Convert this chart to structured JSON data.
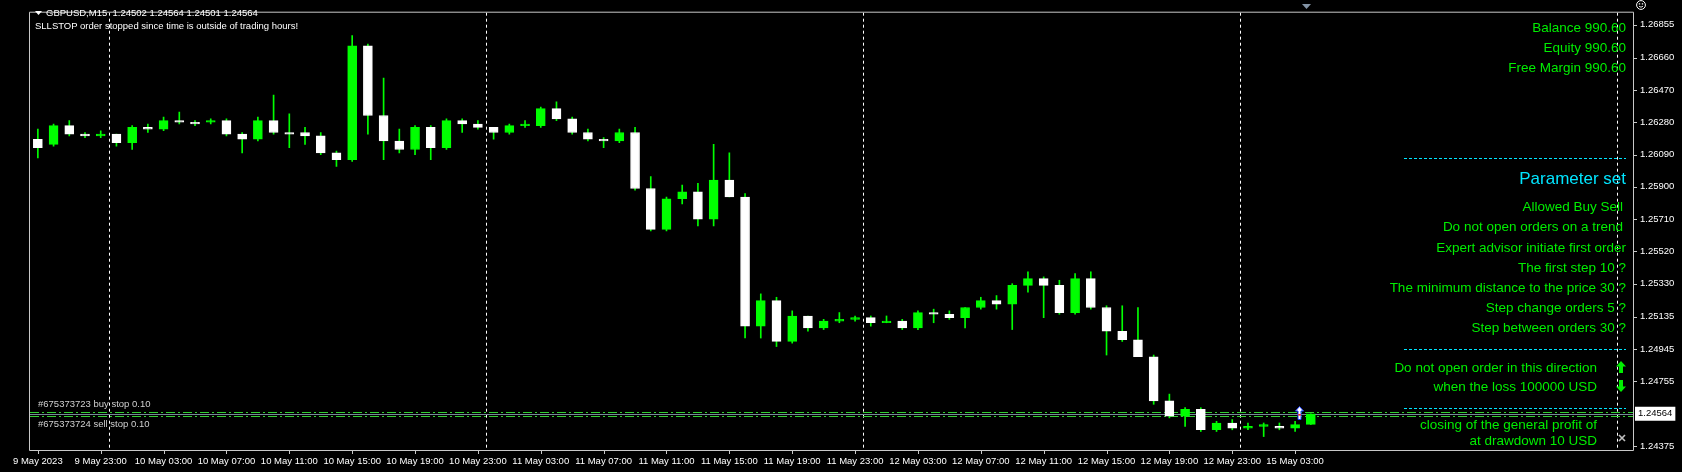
{
  "chart_data": {
    "type": "candlestick",
    "title": "GBPUSD,M15  1.24502 1.24564 1.24501 1.24564",
    "subtitle": "SLLSTOP order stopped since time is outside of trading hours!",
    "categories": [
      "9 May 2023",
      null,
      null,
      null,
      "9 May 23:00",
      null,
      null,
      null,
      "10 May 03:00",
      null,
      null,
      null,
      "10 May 07:00",
      null,
      null,
      null,
      "10 May 11:00",
      null,
      null,
      null,
      "10 May 15:00",
      null,
      null,
      null,
      "10 May 19:00",
      null,
      null,
      null,
      "10 May 23:00",
      null,
      null,
      null,
      "11 May 03:00",
      null,
      null,
      null,
      "11 May 07:00",
      null,
      null,
      null,
      "11 May 11:00",
      null,
      null,
      null,
      "11 May 15:00",
      null,
      null,
      null,
      "11 May 19:00",
      null,
      null,
      null,
      "11 May 23:00",
      null,
      null,
      null,
      "12 May 03:00",
      null,
      null,
      null,
      "12 May 07:00",
      null,
      null,
      null,
      "12 May 11:00",
      null,
      null,
      null,
      "12 May 15:00",
      null,
      null,
      null,
      "12 May 19:00",
      null,
      null,
      null,
      "12 May 23:00",
      null,
      null,
      null,
      "15 May 03:00",
      null,
      null,
      null,
      null,
      null,
      null,
      null,
      null,
      null,
      null,
      null,
      null,
      null,
      null,
      null,
      null,
      null,
      null,
      null,
      null,
      null
    ],
    "ohlc": [
      [
        1.2618,
        1.2624,
        1.2607,
        1.2613
      ],
      [
        1.2615,
        1.2627,
        1.2614,
        1.2626
      ],
      [
        1.2626,
        1.2629,
        1.262,
        1.2621
      ],
      [
        1.2621,
        1.2622,
        1.2619,
        1.262
      ],
      [
        1.262,
        1.2623,
        1.2619,
        1.2621
      ],
      [
        1.2621,
        1.2621,
        1.2614,
        1.2616
      ],
      [
        1.2616,
        1.2626,
        1.2612,
        1.2625
      ],
      [
        1.2625,
        1.2627,
        1.2622,
        1.2624
      ],
      [
        1.2624,
        1.2631,
        1.2623,
        1.2629
      ],
      [
        1.2629,
        1.2634,
        1.2627,
        1.2628
      ],
      [
        1.2628,
        1.2629,
        1.2626,
        1.2627
      ],
      [
        1.2628,
        1.263,
        1.2627,
        1.2629
      ],
      [
        1.2629,
        1.263,
        1.262,
        1.2621
      ],
      [
        1.2621,
        1.2622,
        1.261,
        1.2618
      ],
      [
        1.2618,
        1.2631,
        1.2617,
        1.2629
      ],
      [
        1.2629,
        1.2644,
        1.2621,
        1.2622
      ],
      [
        1.2622,
        1.2633,
        1.2613,
        1.2621
      ],
      [
        1.2622,
        1.2625,
        1.2615,
        1.262
      ],
      [
        1.262,
        1.2622,
        1.2609,
        1.261
      ],
      [
        1.261,
        1.2611,
        1.2602,
        1.2606
      ],
      [
        1.2606,
        1.2679,
        1.2605,
        1.2673
      ],
      [
        1.2673,
        1.2674,
        1.2621,
        1.2632
      ],
      [
        1.2632,
        1.2654,
        1.2606,
        1.2617
      ],
      [
        1.2617,
        1.2624,
        1.261,
        1.2612
      ],
      [
        1.2612,
        1.2626,
        1.2609,
        1.2625
      ],
      [
        1.2625,
        1.2626,
        1.2606,
        1.2613
      ],
      [
        1.2613,
        1.263,
        1.2612,
        1.2629
      ],
      [
        1.2629,
        1.263,
        1.2622,
        1.2627
      ],
      [
        1.2627,
        1.2629,
        1.2624,
        1.2625
      ],
      [
        1.2625,
        1.2625,
        1.2618,
        1.2622
      ],
      [
        1.2622,
        1.2627,
        1.2621,
        1.2626
      ],
      [
        1.2626,
        1.2629,
        1.2625,
        1.2627
      ],
      [
        1.2626,
        1.2637,
        1.2625,
        1.2636
      ],
      [
        1.2636,
        1.264,
        1.2629,
        1.263
      ],
      [
        1.263,
        1.2631,
        1.2621,
        1.2622
      ],
      [
        1.2622,
        1.2624,
        1.2617,
        1.2618
      ],
      [
        1.2618,
        1.2619,
        1.2613,
        1.2617
      ],
      [
        1.2617,
        1.2624,
        1.2616,
        1.2622
      ],
      [
        1.2622,
        1.2625,
        1.2588,
        1.2589
      ],
      [
        1.2589,
        1.2596,
        1.2564,
        1.2565
      ],
      [
        1.2565,
        1.2584,
        1.2564,
        1.2583
      ],
      [
        1.2583,
        1.2591,
        1.258,
        1.2587
      ],
      [
        1.2587,
        1.2592,
        1.2567,
        1.2571
      ],
      [
        1.2571,
        1.2615,
        1.2567,
        1.2594
      ],
      [
        1.2594,
        1.261,
        1.2584,
        1.2584
      ],
      [
        1.2584,
        1.2586,
        1.2501,
        1.2508
      ],
      [
        1.2508,
        1.2527,
        1.2501,
        1.2523
      ],
      [
        1.2523,
        1.2525,
        1.2496,
        1.2499
      ],
      [
        1.2499,
        1.2517,
        1.2498,
        1.2514
      ],
      [
        1.2514,
        1.2514,
        1.2505,
        1.2507
      ],
      [
        1.2507,
        1.2512,
        1.2506,
        1.2511
      ],
      [
        1.2511,
        1.2516,
        1.251,
        1.2512
      ],
      [
        1.2512,
        1.2514,
        1.2511,
        1.2513
      ],
      [
        1.2513,
        1.2514,
        1.2508,
        1.251
      ],
      [
        1.251,
        1.2514,
        1.251,
        1.2511
      ],
      [
        1.2511,
        1.2512,
        1.2506,
        1.2507
      ],
      [
        1.2507,
        1.2517,
        1.2506,
        1.2516
      ],
      [
        1.2516,
        1.2518,
        1.251,
        1.2515
      ],
      [
        1.2515,
        1.2517,
        1.2512,
        1.2513
      ],
      [
        1.2513,
        1.2519,
        1.2507,
        1.2519
      ],
      [
        1.2519,
        1.2525,
        1.2518,
        1.2523
      ],
      [
        1.2523,
        1.2526,
        1.2518,
        1.2521
      ],
      [
        1.2521,
        1.2533,
        1.2506,
        1.2532
      ],
      [
        1.2532,
        1.254,
        1.2528,
        1.2536
      ],
      [
        1.2536,
        1.2537,
        1.2513,
        1.2532
      ],
      [
        1.2532,
        1.2535,
        1.2515,
        1.2516
      ],
      [
        1.2516,
        1.2539,
        1.2515,
        1.2536
      ],
      [
        1.2536,
        1.254,
        1.2518,
        1.2519
      ],
      [
        1.2519,
        1.252,
        1.2491,
        1.2505
      ],
      [
        1.2505,
        1.252,
        1.2499,
        1.25
      ],
      [
        1.25,
        1.2519,
        1.249,
        1.249
      ],
      [
        1.249,
        1.2491,
        1.2462,
        1.2464
      ],
      [
        1.2464,
        1.2468,
        1.2454,
        1.2455
      ],
      [
        1.2455,
        1.246,
        1.2449,
        1.2459
      ],
      [
        1.2459,
        1.246,
        1.2446,
        1.2447
      ],
      [
        1.2447,
        1.2452,
        1.2446,
        1.2451
      ],
      [
        1.2451,
        1.2453,
        1.2447,
        1.2448
      ],
      [
        1.2448,
        1.2451,
        1.2447,
        1.2449
      ],
      [
        1.2449,
        1.2451,
        1.2443,
        1.245
      ],
      [
        1.2449,
        1.2451,
        1.2447,
        1.2448
      ],
      [
        1.2448,
        1.2452,
        1.2446,
        1.245
      ],
      [
        1.24502,
        1.24564,
        1.24501,
        1.24564
      ],
      null,
      null,
      null,
      null,
      null,
      null,
      null,
      null,
      null,
      null,
      null,
      null,
      null,
      null,
      null,
      null,
      null,
      null,
      null,
      null
    ],
    "color": "#00ff00",
    "colors": [
      "#ffffff",
      "#00ff00",
      "#ffffff",
      "#ffffff",
      "#00ff00",
      "#ffffff",
      "#00ff00",
      "#ffffff",
      "#00ff00",
      "#ffffff",
      "#ffffff",
      "#00ff00",
      "#ffffff",
      "#ffffff",
      "#00ff00",
      "#ffffff",
      "#ffffff",
      "#ffffff",
      "#ffffff",
      "#ffffff",
      "#00ff00",
      "#ffffff",
      "#ffffff",
      "#ffffff",
      "#00ff00",
      "#ffffff",
      "#00ff00",
      "#ffffff",
      "#ffffff",
      "#ffffff",
      "#00ff00",
      "#00ff00",
      "#00ff00",
      "#ffffff",
      "#ffffff",
      "#ffffff",
      "#ffffff",
      "#00ff00",
      "#ffffff",
      "#ffffff",
      "#00ff00",
      "#00ff00",
      "#ffffff",
      "#00ff00",
      "#ffffff",
      "#ffffff",
      "#00ff00",
      "#ffffff",
      "#00ff00",
      "#ffffff",
      "#00ff00",
      "#00ff00",
      "#00ff00",
      "#ffffff",
      "#00ff00",
      "#ffffff",
      "#00ff00",
      "#ffffff",
      "#ffffff",
      "#00ff00",
      "#00ff00",
      "#ffffff",
      "#00ff00",
      "#00ff00",
      "#ffffff",
      "#ffffff",
      "#00ff00",
      "#ffffff",
      "#ffffff",
      "#ffffff",
      "#ffffff",
      "#ffffff",
      "#ffffff",
      "#00ff00",
      "#ffffff",
      "#00ff00",
      "#ffffff",
      "#00ff00",
      "#00ff00",
      "#ffffff",
      "#00ff00",
      "#00ff00",
      null,
      null,
      null,
      null,
      null,
      null,
      null,
      null,
      null,
      null,
      null,
      null,
      null,
      null,
      null,
      null,
      null,
      null,
      null,
      null
    ],
    "ylim": [
      1.24351,
      1.26925
    ],
    "yticks": [
      1.26855,
      {
        "value": 1.2666,
        "label": "1.26660"
      },
      {
        "value": 1.2647,
        "label": "1.26470"
      },
      {
        "value": 1.2628,
        "label": "1.26280"
      },
      {
        "value": 1.2609,
        "label": "1.26090"
      },
      {
        "value": 1.259,
        "label": "1.25900"
      },
      {
        "value": 1.2571,
        "label": "1.25710"
      },
      {
        "value": 1.2552,
        "label": "1.25520"
      },
      {
        "value": 1.2533,
        "label": "1.25330"
      },
      1.25135,
      1.24945,
      1.24755,
      1.24375
    ],
    "grid": false,
    "ref_lines": [
      {
        "axis": "y",
        "value": 1.24564,
        "label": "1.24564",
        "color": "#778899",
        "line_style": "solid"
      },
      {
        "axis": "y",
        "value": 1.24575,
        "label": "#675373723 buy stop 0.10",
        "color": "#32cd32",
        "line_style": "dashed"
      },
      {
        "axis": "y",
        "value": 1.2455,
        "label": "#675373724 sell stop 0.10",
        "color": "#32cd32",
        "line_style": "dashed"
      }
    ],
    "annotations": [
      "Balance 990.60",
      "Equity 990.60",
      "Free Margin 990.60",
      "Parameter set",
      "Allowed Buy Sell",
      "Do not open orders on a trend",
      "Expert advisor initiate first order",
      "The first step 10 ?",
      "The minimum distance to the price 30 ?",
      "Step change orders 5 ?",
      "Step between orders 30 ?",
      "Do not open order in this direction",
      "when the loss 100000 USD",
      "closing of the general profit of",
      "at drawdown 10 USD"
    ]
  }
}
